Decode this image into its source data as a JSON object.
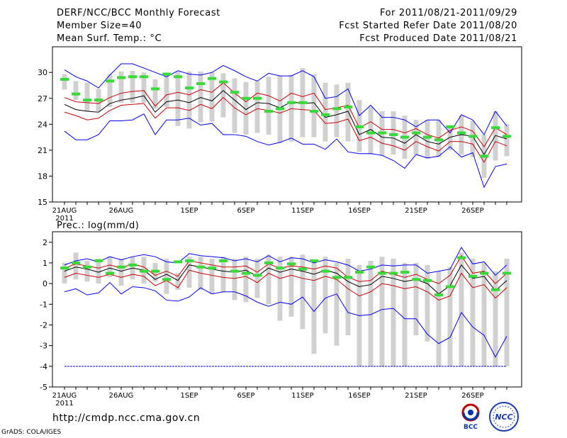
{
  "header": {
    "title": "DERF/NCC/BCC Monthly Forecast",
    "member_size": "Member Size=40",
    "variable": "Mean Surf. Temp.: °C",
    "forecast_period": "For 2011/08/21-2011/09/29",
    "refer_date": "Fcst Started Refer Date 2011/08/20",
    "produced_date": "Fcst Produced Date 2011/08/21"
  },
  "footer": {
    "url": "http://cmdp.ncc.cma.gov.cn",
    "credit": "GrADS: COLA/IGES",
    "logo_bcc": "BCC",
    "logo_ncc": "NCC"
  },
  "colors": {
    "max_min": "#0000ff",
    "spread": "#cc0000",
    "mean": "#000000",
    "box": "#d0d0d0",
    "median": "#33dd33"
  },
  "chart_data": [
    {
      "type": "box-ensemble",
      "title": "Mean Surf. Temp.: °C",
      "ylabel": "°C",
      "ylim": [
        15,
        31
      ],
      "yticks": [
        15,
        18,
        21,
        24,
        27,
        30
      ],
      "xlabels": [
        {
          "day": 1,
          "label": "21AUG"
        },
        {
          "day": 6,
          "label": "26AUG"
        },
        {
          "day": 12,
          "label": "1SEP"
        },
        {
          "day": 17,
          "label": "6SEP"
        },
        {
          "day": 22,
          "label": "11SEP"
        },
        {
          "day": 27,
          "label": "16SEP"
        },
        {
          "day": 32,
          "label": "21SEP"
        },
        {
          "day": 37,
          "label": "26SEP"
        }
      ],
      "year_label": "2011",
      "days": 40,
      "series": [
        {
          "name": "max",
          "values": [
            30.3,
            29.5,
            29.0,
            28.2,
            29.7,
            31.0,
            31.0,
            30.5,
            30.0,
            29.5,
            30.2,
            29.8,
            29.7,
            30.0,
            30.8,
            30.2,
            29.5,
            29.0,
            29.9,
            29.6,
            29.6,
            30.2,
            29.5,
            27.0,
            27.2,
            28.1,
            25.0,
            26.2,
            24.8,
            24.8,
            24.5,
            23.7,
            24.5,
            24.5,
            23.0,
            25.1,
            24.5,
            22.8,
            25.5,
            23.8
          ]
        },
        {
          "name": "spread_upper",
          "values": [
            27.1,
            26.6,
            26.5,
            26.4,
            27.1,
            27.6,
            27.8,
            27.9,
            26.1,
            27.4,
            27.7,
            27.4,
            28.0,
            27.7,
            28.8,
            27.6,
            26.6,
            27.6,
            27.3,
            26.7,
            27.6,
            27.2,
            27.6,
            25.7,
            25.9,
            26.2,
            23.6,
            24.3,
            23.4,
            23.4,
            23.0,
            23.5,
            22.8,
            22.4,
            23.3,
            23.7,
            23.2,
            21.4,
            23.6,
            22.8
          ]
        },
        {
          "name": "mean",
          "values": [
            26.3,
            25.7,
            25.5,
            25.4,
            26.4,
            26.8,
            27.0,
            27.3,
            25.4,
            26.6,
            26.8,
            26.5,
            27.1,
            26.7,
            27.9,
            26.8,
            25.7,
            26.5,
            26.4,
            25.9,
            26.6,
            26.4,
            26.5,
            24.8,
            25.1,
            25.5,
            22.8,
            23.4,
            22.5,
            22.4,
            21.8,
            22.8,
            22.0,
            21.7,
            22.5,
            22.8,
            22.6,
            20.5,
            22.7,
            22.3
          ]
        },
        {
          "name": "spread_lower",
          "values": [
            25.4,
            25.0,
            24.5,
            24.7,
            25.6,
            26.2,
            26.3,
            26.4,
            24.7,
            25.9,
            25.9,
            25.6,
            26.3,
            25.8,
            27.1,
            25.9,
            25.1,
            25.8,
            25.6,
            25.3,
            25.8,
            25.7,
            25.6,
            24.1,
            24.2,
            24.6,
            22.1,
            22.5,
            21.8,
            21.5,
            21.0,
            22.0,
            21.4,
            20.9,
            22.0,
            22.0,
            21.7,
            19.6,
            22.0,
            21.5
          ]
        },
        {
          "name": "min",
          "values": [
            23.2,
            22.2,
            22.2,
            22.8,
            24.4,
            24.4,
            24.5,
            25.2,
            22.8,
            24.5,
            24.5,
            24.7,
            23.9,
            24.1,
            22.8,
            22.8,
            22.6,
            22.0,
            21.6,
            21.9,
            22.4,
            21.7,
            21.7,
            21.1,
            22.3,
            20.8,
            20.6,
            20.6,
            20.4,
            19.8,
            18.9,
            20.5,
            20.1,
            20.3,
            21.4,
            20.2,
            20.7,
            16.7,
            19.1,
            19.4
          ]
        },
        {
          "name": "median",
          "values": [
            29.2,
            27.5,
            26.8,
            26.8,
            29.0,
            29.4,
            29.5,
            29.5,
            28.1,
            29.8,
            29.5,
            28.2,
            28.7,
            29.3,
            28.9,
            27.7,
            27.0,
            27.0,
            25.5,
            25.8,
            26.5,
            26.5,
            25.5,
            25.1,
            25.8,
            26.0,
            23.7,
            23.0,
            23.0,
            22.8,
            22.5,
            23.0,
            22.5,
            22.2,
            23.7,
            23.0,
            22.6,
            20.3,
            23.6,
            22.6
          ]
        },
        {
          "name": "box_high",
          "values": [
            29.8,
            29.0,
            28.8,
            28.1,
            29.8,
            30.1,
            30.2,
            30.0,
            29.2,
            30.0,
            30.1,
            30.1,
            30.1,
            30.0,
            29.9,
            29.3,
            28.9,
            29.0,
            29.5,
            29.6,
            29.7,
            30.5,
            29.8,
            28.8,
            28.6,
            28.8,
            26.8,
            26.0,
            25.5,
            25.5,
            25.0,
            24.5,
            24.5,
            24.5,
            23.9,
            25.0,
            24.4,
            22.8,
            25.5,
            24.0
          ]
        },
        {
          "name": "box_low",
          "values": [
            28.0,
            26.8,
            25.5,
            25.5,
            26.0,
            26.5,
            26.5,
            26.5,
            25.8,
            26.0,
            23.8,
            23.5,
            24.2,
            24.3,
            24.8,
            23.0,
            22.8,
            23.0,
            22.8,
            21.8,
            22.0,
            22.5,
            22.5,
            22.0,
            22.5,
            22.0,
            20.8,
            20.5,
            20.3,
            20.5,
            20.0,
            20.5,
            20.0,
            20.2,
            21.0,
            20.5,
            20.2,
            17.8,
            19.8,
            20.3
          ]
        }
      ]
    },
    {
      "type": "box-ensemble",
      "title": "Prec.: log(mm/d)",
      "ylabel": "log(mm/d)",
      "ylim": [
        -5,
        2.3
      ],
      "yticks": [
        -5,
        -4,
        -3,
        -2,
        -1,
        0,
        1,
        2
      ],
      "xlabels": [
        {
          "day": 1,
          "label": "21AUG"
        },
        {
          "day": 6,
          "label": "26AUG"
        },
        {
          "day": 12,
          "label": "1SEP"
        },
        {
          "day": 17,
          "label": "6SEP"
        },
        {
          "day": 22,
          "label": "11SEP"
        },
        {
          "day": 27,
          "label": "16SEP"
        },
        {
          "day": 32,
          "label": "21SEP"
        },
        {
          "day": 37,
          "label": "26SEP"
        }
      ],
      "year_label": "2011",
      "days": 40,
      "series": [
        {
          "name": "max",
          "values": [
            0.9,
            1.1,
            1.2,
            1.05,
            1.3,
            1.15,
            1.3,
            1.4,
            1.3,
            1.05,
            1.0,
            1.45,
            1.35,
            1.3,
            1.25,
            1.1,
            1.2,
            1.05,
            1.35,
            1.05,
            1.25,
            1.2,
            1.0,
            1.15,
            1.05,
            0.9,
            0.6,
            0.7,
            0.9,
            0.85,
            0.9,
            0.9,
            0.5,
            0.6,
            0.7,
            1.75,
            0.95,
            1.05,
            0.4,
            0.9
          ]
        },
        {
          "name": "spread_upper",
          "values": [
            0.75,
            0.95,
            0.85,
            0.75,
            0.9,
            0.75,
            0.95,
            0.8,
            0.4,
            0.6,
            0.35,
            1.1,
            1.0,
            0.9,
            0.8,
            0.8,
            0.85,
            0.55,
            0.95,
            0.75,
            0.85,
            0.8,
            0.7,
            0.85,
            0.75,
            0.3,
            0.1,
            0.15,
            0.6,
            0.45,
            0.3,
            0.45,
            0.2,
            0.0,
            0.4,
            1.35,
            0.5,
            0.6,
            0.0,
            0.5
          ]
        },
        {
          "name": "mean",
          "values": [
            0.6,
            0.8,
            0.7,
            0.55,
            0.75,
            0.6,
            0.75,
            0.65,
            0.2,
            0.45,
            0.15,
            0.9,
            0.8,
            0.7,
            0.6,
            0.55,
            0.65,
            0.35,
            0.75,
            0.55,
            0.7,
            0.6,
            0.45,
            0.65,
            0.5,
            0.1,
            -0.15,
            -0.05,
            0.35,
            0.25,
            0.1,
            0.2,
            0.0,
            -0.5,
            -0.1,
            0.9,
            0.25,
            0.35,
            -0.35,
            0.15
          ]
        },
        {
          "name": "spread_lower",
          "values": [
            0.3,
            0.5,
            0.4,
            0.3,
            0.45,
            0.3,
            0.45,
            0.35,
            -0.1,
            0.15,
            -0.2,
            0.65,
            0.5,
            0.4,
            0.3,
            0.25,
            0.35,
            0.05,
            0.5,
            0.25,
            0.4,
            0.25,
            0.15,
            0.35,
            0.2,
            -0.25,
            -0.6,
            -0.4,
            0.0,
            -0.1,
            -0.25,
            -0.15,
            -0.4,
            -0.8,
            -0.6,
            0.5,
            -0.2,
            -0.05,
            -0.7,
            -0.2
          ]
        },
        {
          "name": "min",
          "values": [
            -0.4,
            -0.25,
            -0.55,
            -0.45,
            0.05,
            -0.5,
            -0.15,
            -0.2,
            -0.35,
            -0.8,
            -0.85,
            -0.65,
            -0.2,
            -0.5,
            -0.4,
            -0.4,
            -0.6,
            -0.9,
            -1.1,
            -0.9,
            -1.0,
            -0.65,
            -1.35,
            -0.7,
            -0.5,
            -1.4,
            -1.55,
            -1.5,
            -1.25,
            -1.2,
            -1.7,
            -1.7,
            -2.45,
            -2.9,
            -2.6,
            -1.4,
            -2.1,
            -2.5,
            -3.55,
            -2.55
          ]
        },
        {
          "name": "median",
          "values": [
            0.75,
            1.0,
            0.8,
            1.1,
            0.5,
            0.8,
            0.9,
            0.6,
            0.6,
            0.2,
            1.05,
            1.1,
            0.8,
            0.75,
            1.1,
            0.6,
            0.5,
            0.4,
            1.0,
            0.75,
            0.95,
            0.7,
            1.1,
            0.6,
            0.3,
            0.3,
            0.55,
            0.8,
            0.5,
            0.5,
            0.55,
            0.2,
            0.15,
            -0.55,
            -0.15,
            1.25,
            0.35,
            0.5,
            -0.3,
            0.5
          ]
        },
        {
          "name": "box_high",
          "values": [
            1.0,
            1.5,
            1.1,
            1.2,
            1.3,
            1.2,
            1.3,
            1.3,
            1.0,
            1.2,
            0.5,
            1.3,
            1.3,
            1.2,
            1.3,
            1.2,
            1.3,
            1.2,
            1.4,
            1.3,
            1.3,
            1.4,
            1.1,
            1.3,
            1.0,
            1.2,
            0.9,
            1.1,
            1.3,
            1.2,
            1.0,
            1.0,
            0.9,
            0.6,
            0.8,
            1.5,
            1.2,
            1.0,
            0.6,
            1.2
          ]
        },
        {
          "name": "box_low",
          "values": [
            0.0,
            0.2,
            0.1,
            0.0,
            0.3,
            -0.1,
            0.2,
            0.0,
            0.1,
            -0.5,
            -0.3,
            -0.2,
            -0.3,
            -0.5,
            -0.4,
            -0.8,
            -0.9,
            -0.7,
            -1.0,
            -1.8,
            -1.6,
            -2.2,
            -3.4,
            -2.4,
            -3.0,
            -2.5,
            -4.0,
            -4.0,
            -4.0,
            -4.0,
            -4.0,
            -2.5,
            -2.8,
            -4.0,
            -4.0,
            -4.0,
            -4.0,
            -4.0,
            -4.0,
            -4.0
          ]
        },
        {
          "name": "min_floor",
          "values": [
            -4,
            -4,
            -4,
            -4,
            -4,
            -4,
            -4,
            -4,
            -4,
            -4,
            -4,
            -4,
            -4,
            -4,
            -4,
            -4,
            -4,
            -4,
            -4,
            -4,
            -4,
            -4,
            -4,
            -4,
            -4,
            -4,
            -4,
            -4,
            -4,
            -4,
            -4,
            -4,
            -4,
            -4,
            -4,
            -4,
            -4,
            -4,
            -4,
            -4
          ]
        }
      ]
    }
  ]
}
